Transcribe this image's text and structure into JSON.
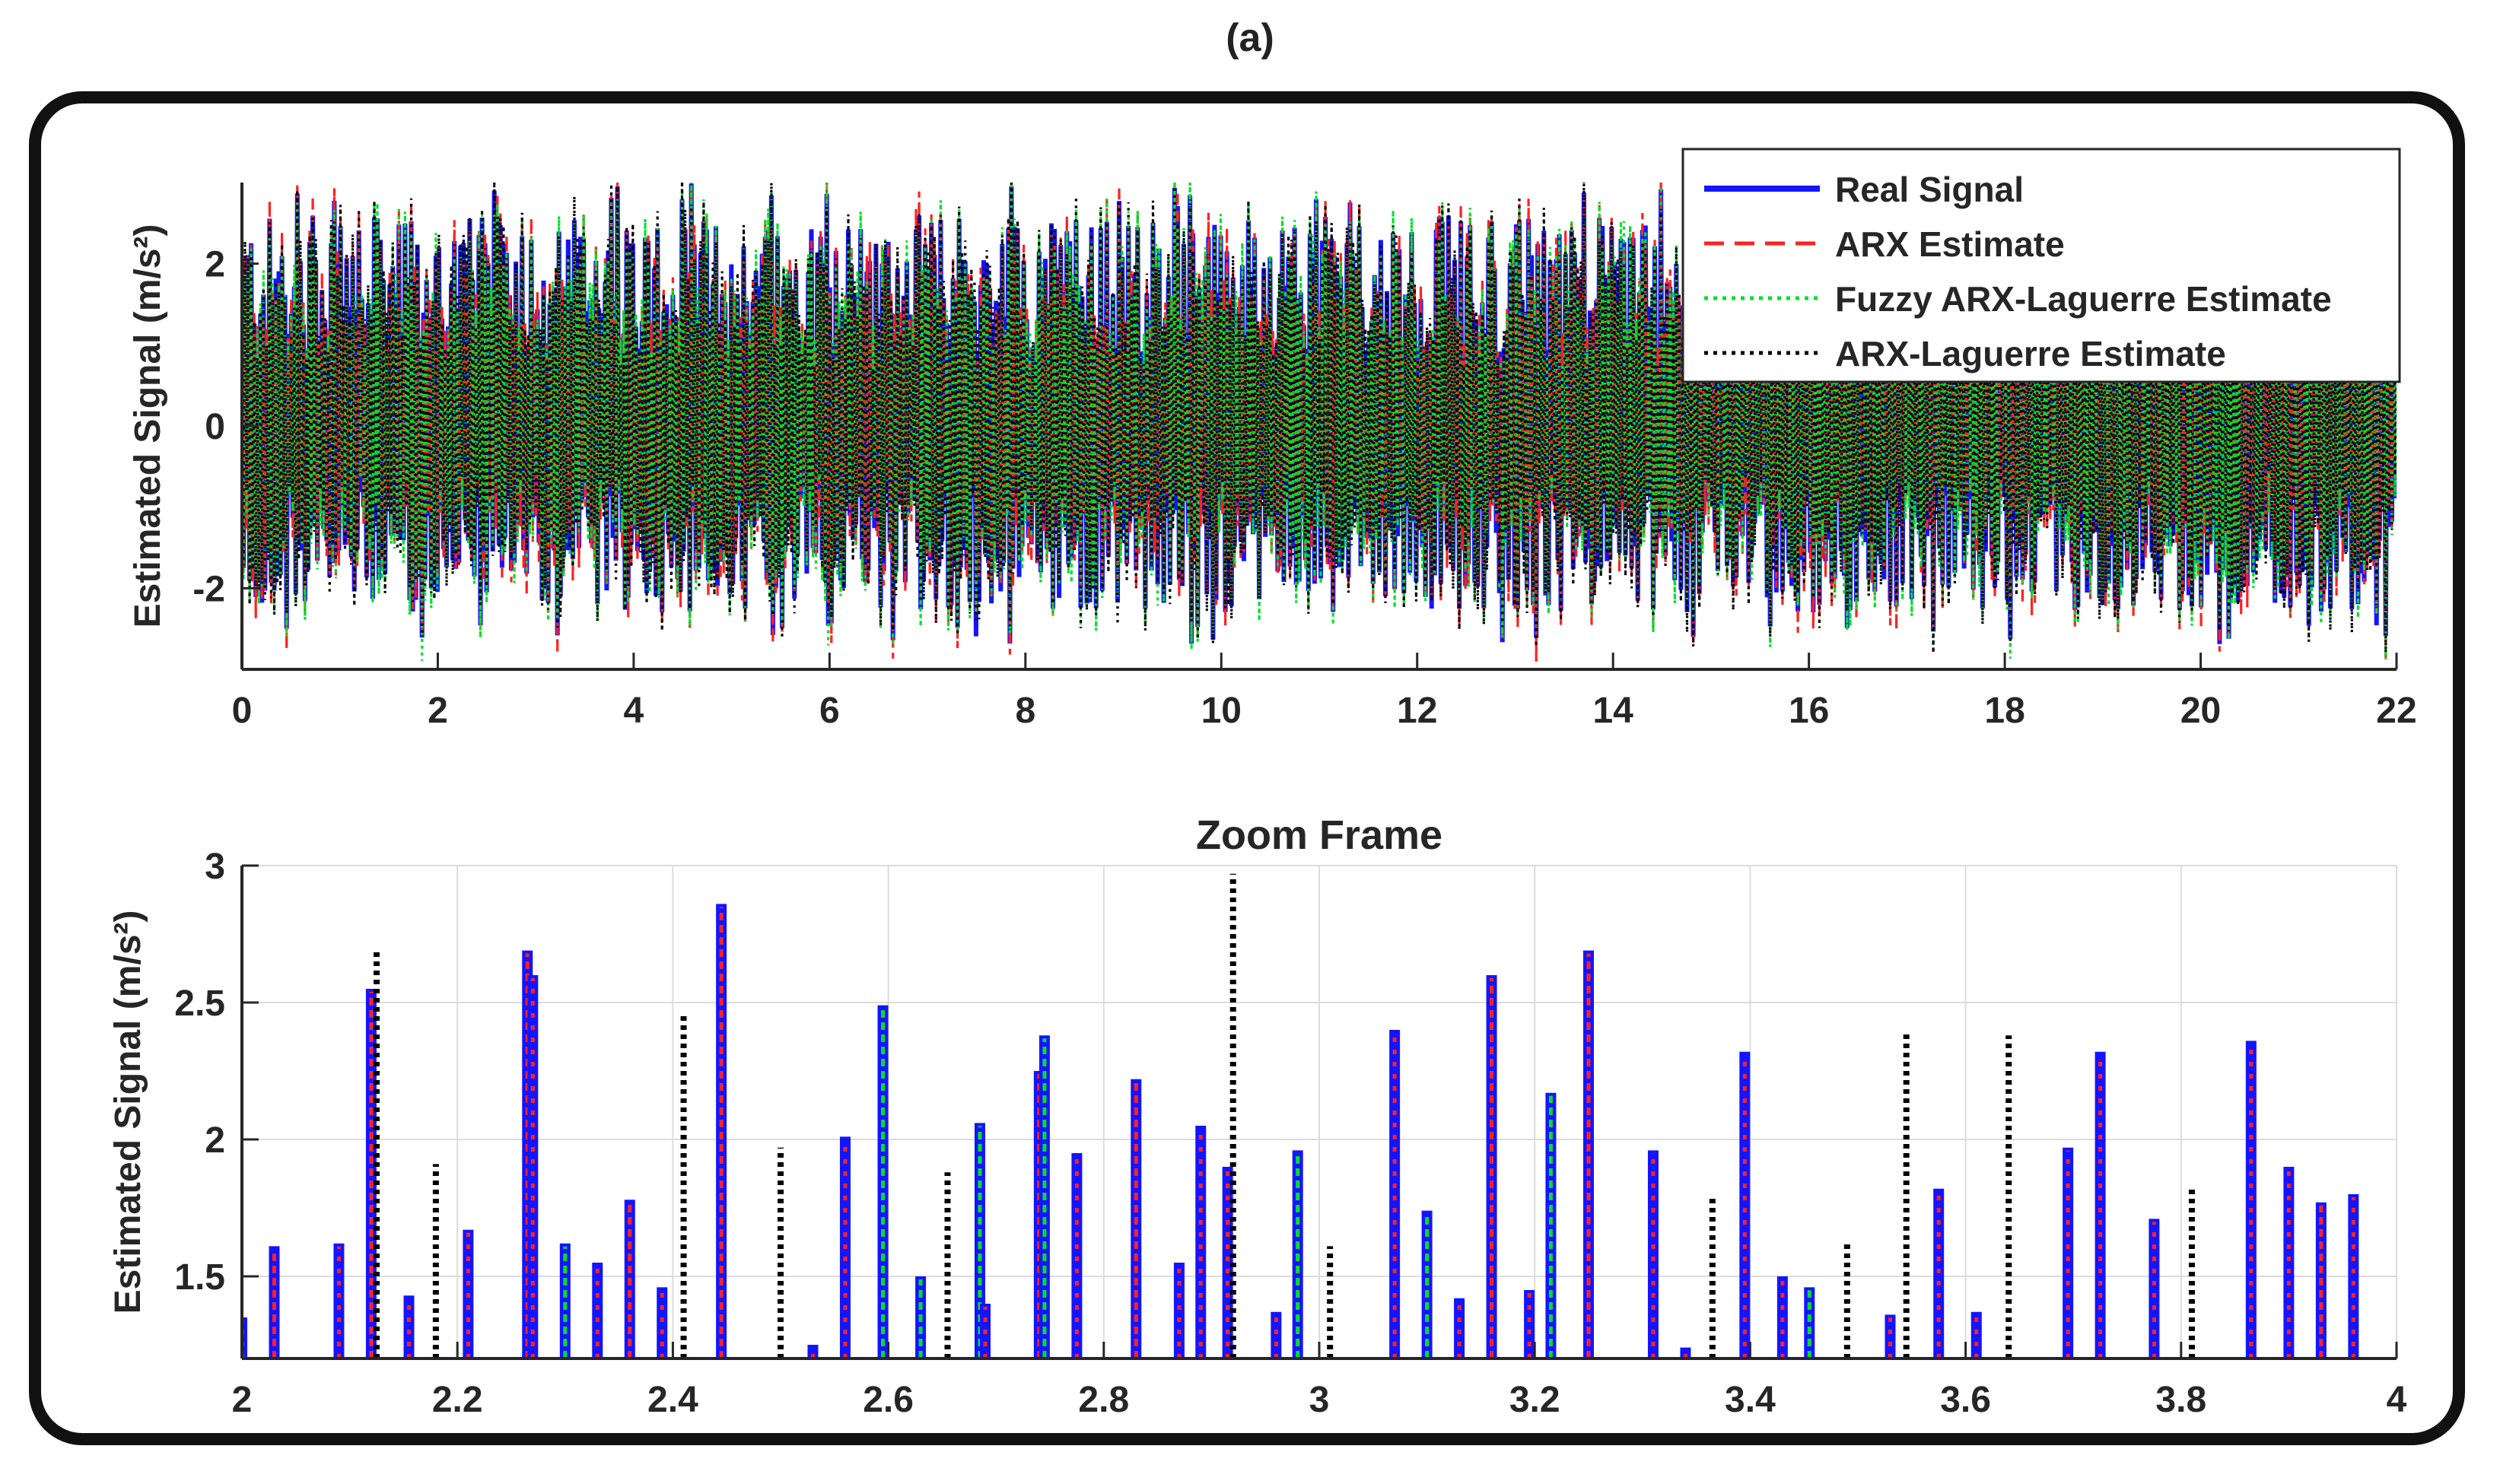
{
  "figure_label": "(a)",
  "chart_data": [
    {
      "type": "line",
      "title": "",
      "xlabel": "",
      "ylabel": "Estimated Signal (m/s²)",
      "xlim": [
        0,
        22
      ],
      "ylim": [
        -3,
        3
      ],
      "xticks": [
        0,
        2,
        4,
        6,
        8,
        10,
        12,
        14,
        16,
        18,
        20,
        22
      ],
      "yticks": [
        -2,
        0,
        2
      ],
      "grid": false,
      "legend_position": "top-right",
      "description_of_data": "dense oscillating acceleration signal, four overlapping series",
      "series": [
        {
          "name": "Real Signal",
          "color": "#1414ff",
          "style": "solid"
        },
        {
          "name": "ARX Estimate",
          "color": "#ff2222",
          "style": "dashed"
        },
        {
          "name": "Fuzzy ARX-Laguerre Estimate",
          "color": "#00e02a",
          "style": "dotted"
        },
        {
          "name": "ARX-Laguerre Estimate",
          "color": "#000000",
          "style": "dotted"
        }
      ],
      "envelope": {
        "typical_max": 2.6,
        "typical_min": -2.3,
        "peak_max": 3.0,
        "peak_min": -2.7
      }
    },
    {
      "type": "line",
      "title": "Zoom Frame",
      "xlabel": "",
      "ylabel": "Estimated Signal (m/s²)",
      "xlim": [
        2,
        4
      ],
      "ylim": [
        1.2,
        3
      ],
      "xticks": [
        2,
        2.2,
        2.4,
        2.6,
        2.8,
        3,
        3.2,
        3.4,
        3.6,
        3.8,
        4
      ],
      "yticks": [
        1.5,
        2,
        2.5,
        3
      ],
      "grid": true,
      "spikes": [
        {
          "x": 2.0,
          "y": 1.35,
          "s": "real"
        },
        {
          "x": 2.03,
          "y": 1.61,
          "s": "arx"
        },
        {
          "x": 2.09,
          "y": 1.62,
          "s": "real"
        },
        {
          "x": 2.12,
          "y": 2.55,
          "s": "arx"
        },
        {
          "x": 2.125,
          "y": 2.7,
          "s": "laguerre"
        },
        {
          "x": 2.155,
          "y": 1.43,
          "s": "real"
        },
        {
          "x": 2.18,
          "y": 1.91,
          "s": "laguerre"
        },
        {
          "x": 2.21,
          "y": 1.67,
          "s": "real"
        },
        {
          "x": 2.265,
          "y": 2.69,
          "s": "arx"
        },
        {
          "x": 2.27,
          "y": 2.6,
          "s": "real"
        },
        {
          "x": 2.3,
          "y": 1.62,
          "s": "fuzzy"
        },
        {
          "x": 2.33,
          "y": 1.55,
          "s": "real"
        },
        {
          "x": 2.36,
          "y": 1.78,
          "s": "arx"
        },
        {
          "x": 2.39,
          "y": 1.46,
          "s": "real"
        },
        {
          "x": 2.41,
          "y": 2.46,
          "s": "laguerre"
        },
        {
          "x": 2.445,
          "y": 2.86,
          "s": "arx"
        },
        {
          "x": 2.5,
          "y": 1.97,
          "s": "laguerre"
        },
        {
          "x": 2.53,
          "y": 1.25,
          "s": "real"
        },
        {
          "x": 2.56,
          "y": 2.01,
          "s": "real"
        },
        {
          "x": 2.595,
          "y": 2.49,
          "s": "fuzzy"
        },
        {
          "x": 2.63,
          "y": 1.5,
          "s": "fuzzy"
        },
        {
          "x": 2.655,
          "y": 1.88,
          "s": "laguerre"
        },
        {
          "x": 2.685,
          "y": 2.06,
          "s": "fuzzy"
        },
        {
          "x": 2.69,
          "y": 1.4,
          "s": "real"
        },
        {
          "x": 2.74,
          "y": 2.25,
          "s": "arx"
        },
        {
          "x": 2.745,
          "y": 2.38,
          "s": "fuzzy"
        },
        {
          "x": 2.775,
          "y": 1.95,
          "s": "real"
        },
        {
          "x": 2.83,
          "y": 2.22,
          "s": "arx"
        },
        {
          "x": 2.87,
          "y": 1.55,
          "s": "real"
        },
        {
          "x": 2.89,
          "y": 2.05,
          "s": "real"
        },
        {
          "x": 2.915,
          "y": 1.9,
          "s": "real"
        },
        {
          "x": 2.92,
          "y": 2.97,
          "s": "laguerre"
        },
        {
          "x": 2.96,
          "y": 1.37,
          "s": "real"
        },
        {
          "x": 2.98,
          "y": 1.96,
          "s": "fuzzy"
        },
        {
          "x": 3.01,
          "y": 1.61,
          "s": "laguerre"
        },
        {
          "x": 3.07,
          "y": 2.4,
          "s": "real"
        },
        {
          "x": 3.1,
          "y": 1.74,
          "s": "fuzzy"
        },
        {
          "x": 3.13,
          "y": 1.42,
          "s": "real"
        },
        {
          "x": 3.16,
          "y": 2.6,
          "s": "arx"
        },
        {
          "x": 3.195,
          "y": 1.45,
          "s": "real"
        },
        {
          "x": 3.215,
          "y": 2.17,
          "s": "fuzzy"
        },
        {
          "x": 3.25,
          "y": 2.69,
          "s": "arx"
        },
        {
          "x": 3.31,
          "y": 1.96,
          "s": "real"
        },
        {
          "x": 3.34,
          "y": 1.24,
          "s": "real"
        },
        {
          "x": 3.365,
          "y": 1.8,
          "s": "laguerre"
        },
        {
          "x": 3.395,
          "y": 2.32,
          "s": "real"
        },
        {
          "x": 3.43,
          "y": 1.5,
          "s": "real"
        },
        {
          "x": 3.455,
          "y": 1.46,
          "s": "fuzzy"
        },
        {
          "x": 3.49,
          "y": 1.63,
          "s": "laguerre"
        },
        {
          "x": 3.53,
          "y": 1.36,
          "s": "real"
        },
        {
          "x": 3.545,
          "y": 2.39,
          "s": "laguerre"
        },
        {
          "x": 3.575,
          "y": 1.82,
          "s": "real"
        },
        {
          "x": 3.61,
          "y": 1.37,
          "s": "real"
        },
        {
          "x": 3.64,
          "y": 2.38,
          "s": "laguerre"
        },
        {
          "x": 3.695,
          "y": 1.97,
          "s": "real"
        },
        {
          "x": 3.725,
          "y": 2.32,
          "s": "real"
        },
        {
          "x": 3.775,
          "y": 1.71,
          "s": "real"
        },
        {
          "x": 3.81,
          "y": 1.82,
          "s": "laguerre"
        },
        {
          "x": 3.865,
          "y": 2.36,
          "s": "real"
        },
        {
          "x": 3.9,
          "y": 1.9,
          "s": "real"
        },
        {
          "x": 3.93,
          "y": 1.77,
          "s": "arx"
        },
        {
          "x": 3.96,
          "y": 1.8,
          "s": "real"
        }
      ]
    }
  ]
}
